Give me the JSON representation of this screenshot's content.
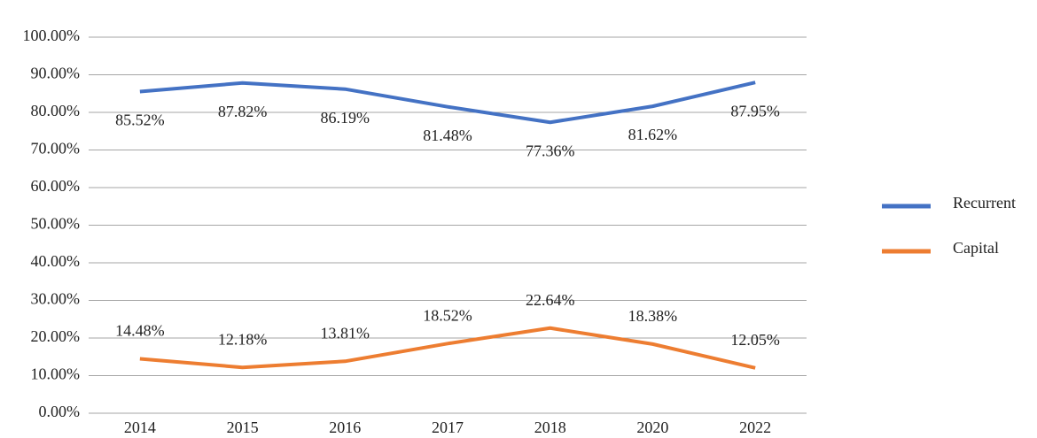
{
  "chart_data": {
    "type": "line",
    "categories": [
      "2014",
      "2015",
      "2016",
      "2017",
      "2018",
      "2020",
      "2022"
    ],
    "series": [
      {
        "name": "Recurrent",
        "color": "#4472c4",
        "values": [
          85.52,
          87.82,
          86.19,
          81.48,
          77.36,
          81.62,
          87.95
        ],
        "value_labels": [
          "85.52%",
          "87.82%",
          "86.19%",
          "81.48%",
          "77.36%",
          "81.62%",
          "87.95%"
        ]
      },
      {
        "name": "Capital",
        "color": "#ed7d31",
        "values": [
          14.48,
          12.18,
          13.81,
          18.52,
          22.64,
          18.38,
          12.05
        ],
        "value_labels": [
          "14.48%",
          "12.18%",
          "13.81%",
          "18.52%",
          "22.64%",
          "18.38%",
          "12.05%"
        ]
      }
    ],
    "ylim": [
      0,
      100
    ],
    "yticks": [
      {
        "value": 0,
        "label": "0.00%"
      },
      {
        "value": 10,
        "label": "10.00%"
      },
      {
        "value": 20,
        "label": "20.00%"
      },
      {
        "value": 30,
        "label": "30.00%"
      },
      {
        "value": 40,
        "label": "40.00%"
      },
      {
        "value": 50,
        "label": "50.00%"
      },
      {
        "value": 60,
        "label": "60.00%"
      },
      {
        "value": 70,
        "label": "70.00%"
      },
      {
        "value": 80,
        "label": "80.00%"
      },
      {
        "value": 90,
        "label": "90.00%"
      },
      {
        "value": 100,
        "label": "100.00%"
      }
    ],
    "grid": true,
    "legend": "right"
  }
}
